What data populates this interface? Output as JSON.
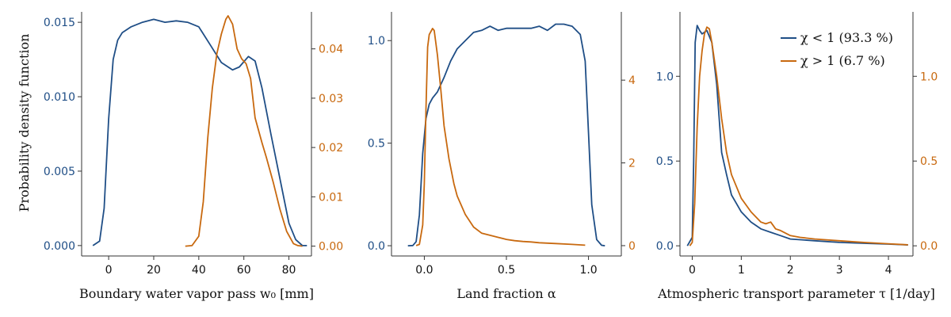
{
  "colors": {
    "blue": "#1f4e86",
    "orange": "#c8690f",
    "text": "#111111",
    "axis": "#333333"
  },
  "ylabel_shared": "Probability density function",
  "legend": {
    "items": [
      {
        "label": "χ < 1 (93.3 %)",
        "color": "#1f4e86"
      },
      {
        "label": "χ > 1 (6.7 %)",
        "color": "#c8690f"
      }
    ]
  },
  "chart_data": [
    {
      "type": "line",
      "xlabel": "Boundary water vapor pass w₀ [mm]",
      "xlim": [
        -12,
        90
      ],
      "xticks": [
        0,
        20,
        40,
        60,
        80
      ],
      "ylim_left": [
        -0.0007,
        0.0157
      ],
      "yticks_left": [
        "0.000",
        "0.005",
        "0.010",
        "0.015"
      ],
      "ylim_right": [
        -0.002,
        0.0475
      ],
      "yticks_right": [
        "0.00",
        "0.01",
        "0.02",
        "0.03",
        "0.04"
      ],
      "series": [
        {
          "axis": "left",
          "color": "#1f4e86",
          "x": [
            -7,
            -4,
            -2,
            0,
            2,
            4,
            6,
            10,
            15,
            20,
            25,
            30,
            35,
            40,
            45,
            50,
            55,
            58,
            62,
            65,
            68,
            72,
            76,
            80,
            83,
            86,
            88
          ],
          "y": [
            0.0,
            0.0003,
            0.0025,
            0.0085,
            0.0125,
            0.0138,
            0.0143,
            0.0147,
            0.015,
            0.0152,
            0.015,
            0.0151,
            0.015,
            0.0147,
            0.0135,
            0.0123,
            0.0118,
            0.012,
            0.0127,
            0.0124,
            0.0106,
            0.0075,
            0.0045,
            0.0015,
            0.0004,
            0.0,
            0.0
          ]
        },
        {
          "axis": "right",
          "color": "#c8690f",
          "x": [
            34,
            37,
            40,
            42,
            44,
            46,
            48,
            50,
            52,
            53,
            55,
            57,
            59,
            61,
            63,
            65,
            68,
            70,
            73,
            76,
            79,
            82,
            84,
            86
          ],
          "y": [
            0.0,
            0.0001,
            0.002,
            0.009,
            0.022,
            0.032,
            0.039,
            0.043,
            0.046,
            0.0467,
            0.045,
            0.04,
            0.038,
            0.037,
            0.034,
            0.026,
            0.021,
            0.018,
            0.013,
            0.0075,
            0.003,
            0.0005,
            0.0001,
            0.0
          ]
        }
      ]
    },
    {
      "type": "line",
      "xlabel": "Land fraction α",
      "xlim": [
        -0.2,
        1.2
      ],
      "xticks": [
        0.0,
        0.5,
        1.0
      ],
      "xtick_labels": [
        "0.0",
        "0.5",
        "1.0"
      ],
      "ylim_left": [
        -0.05,
        1.14
      ],
      "yticks_left": [
        "0.0",
        "0.5",
        "1.0"
      ],
      "ylim_right": [
        -0.25,
        5.65
      ],
      "yticks_right": [
        "0",
        "2",
        "4"
      ],
      "series": [
        {
          "axis": "left",
          "color": "#1f4e86",
          "x": [
            -0.1,
            -0.07,
            -0.05,
            -0.03,
            -0.01,
            0.01,
            0.03,
            0.05,
            0.08,
            0.12,
            0.16,
            0.2,
            0.25,
            0.3,
            0.35,
            0.4,
            0.45,
            0.5,
            0.55,
            0.6,
            0.65,
            0.7,
            0.75,
            0.8,
            0.85,
            0.9,
            0.95,
            0.98,
            1.0,
            1.02,
            1.05,
            1.08,
            1.1
          ],
          "y": [
            0.0,
            0.001,
            0.02,
            0.15,
            0.45,
            0.62,
            0.69,
            0.72,
            0.75,
            0.82,
            0.9,
            0.96,
            1.0,
            1.04,
            1.05,
            1.07,
            1.05,
            1.06,
            1.06,
            1.06,
            1.06,
            1.07,
            1.05,
            1.08,
            1.08,
            1.07,
            1.03,
            0.9,
            0.55,
            0.2,
            0.03,
            0.002,
            0.0
          ]
        },
        {
          "axis": "right",
          "color": "#c8690f",
          "x": [
            -0.05,
            -0.03,
            -0.01,
            0.0,
            0.01,
            0.02,
            0.03,
            0.05,
            0.06,
            0.08,
            0.1,
            0.12,
            0.15,
            0.18,
            0.2,
            0.25,
            0.3,
            0.35,
            0.4,
            0.45,
            0.5,
            0.55,
            0.6,
            0.65,
            0.7,
            0.8,
            0.9,
            0.98
          ],
          "y": [
            0.0,
            0.03,
            0.5,
            1.5,
            3.3,
            4.8,
            5.1,
            5.25,
            5.2,
            4.6,
            3.8,
            2.9,
            2.1,
            1.5,
            1.2,
            0.75,
            0.45,
            0.3,
            0.25,
            0.2,
            0.15,
            0.12,
            0.1,
            0.09,
            0.07,
            0.05,
            0.03,
            0.01
          ]
        }
      ]
    },
    {
      "type": "line",
      "xlabel": "Atmospheric transport parameter τ [1/day]",
      "xlim": [
        -0.25,
        4.5
      ],
      "xticks": [
        0,
        1,
        2,
        3,
        4
      ],
      "ylim_left": [
        -0.06,
        1.38
      ],
      "yticks_left": [
        "0.0",
        "0.5",
        "1.0"
      ],
      "ylim_right": [
        -0.06,
        1.38
      ],
      "yticks_right": [
        "0.0",
        "0.5",
        "1.0"
      ],
      "series": [
        {
          "axis": "left",
          "color": "#1f4e86",
          "x": [
            -0.1,
            0.0,
            0.03,
            0.06,
            0.1,
            0.15,
            0.2,
            0.3,
            0.4,
            0.5,
            0.6,
            0.7,
            0.8,
            1.0,
            1.2,
            1.4,
            1.6,
            1.8,
            2.0,
            2.5,
            3.0,
            3.5,
            4.0,
            4.4
          ],
          "y": [
            0.0,
            0.05,
            0.5,
            1.2,
            1.3,
            1.27,
            1.25,
            1.27,
            1.2,
            0.95,
            0.55,
            0.42,
            0.3,
            0.2,
            0.14,
            0.1,
            0.08,
            0.06,
            0.04,
            0.03,
            0.02,
            0.015,
            0.01,
            0.005
          ]
        },
        {
          "axis": "right",
          "color": "#c8690f",
          "x": [
            -0.05,
            0.0,
            0.05,
            0.1,
            0.15,
            0.2,
            0.25,
            0.3,
            0.35,
            0.4,
            0.5,
            0.6,
            0.7,
            0.8,
            1.0,
            1.2,
            1.4,
            1.5,
            1.6,
            1.7,
            1.8,
            2.0,
            2.2,
            2.5,
            3.0,
            3.5,
            4.0,
            4.4
          ],
          "y": [
            0.0,
            0.02,
            0.25,
            0.7,
            1.0,
            1.15,
            1.25,
            1.29,
            1.28,
            1.2,
            1.0,
            0.75,
            0.55,
            0.42,
            0.28,
            0.2,
            0.14,
            0.13,
            0.14,
            0.1,
            0.09,
            0.06,
            0.05,
            0.04,
            0.03,
            0.02,
            0.012,
            0.006
          ]
        }
      ]
    }
  ]
}
